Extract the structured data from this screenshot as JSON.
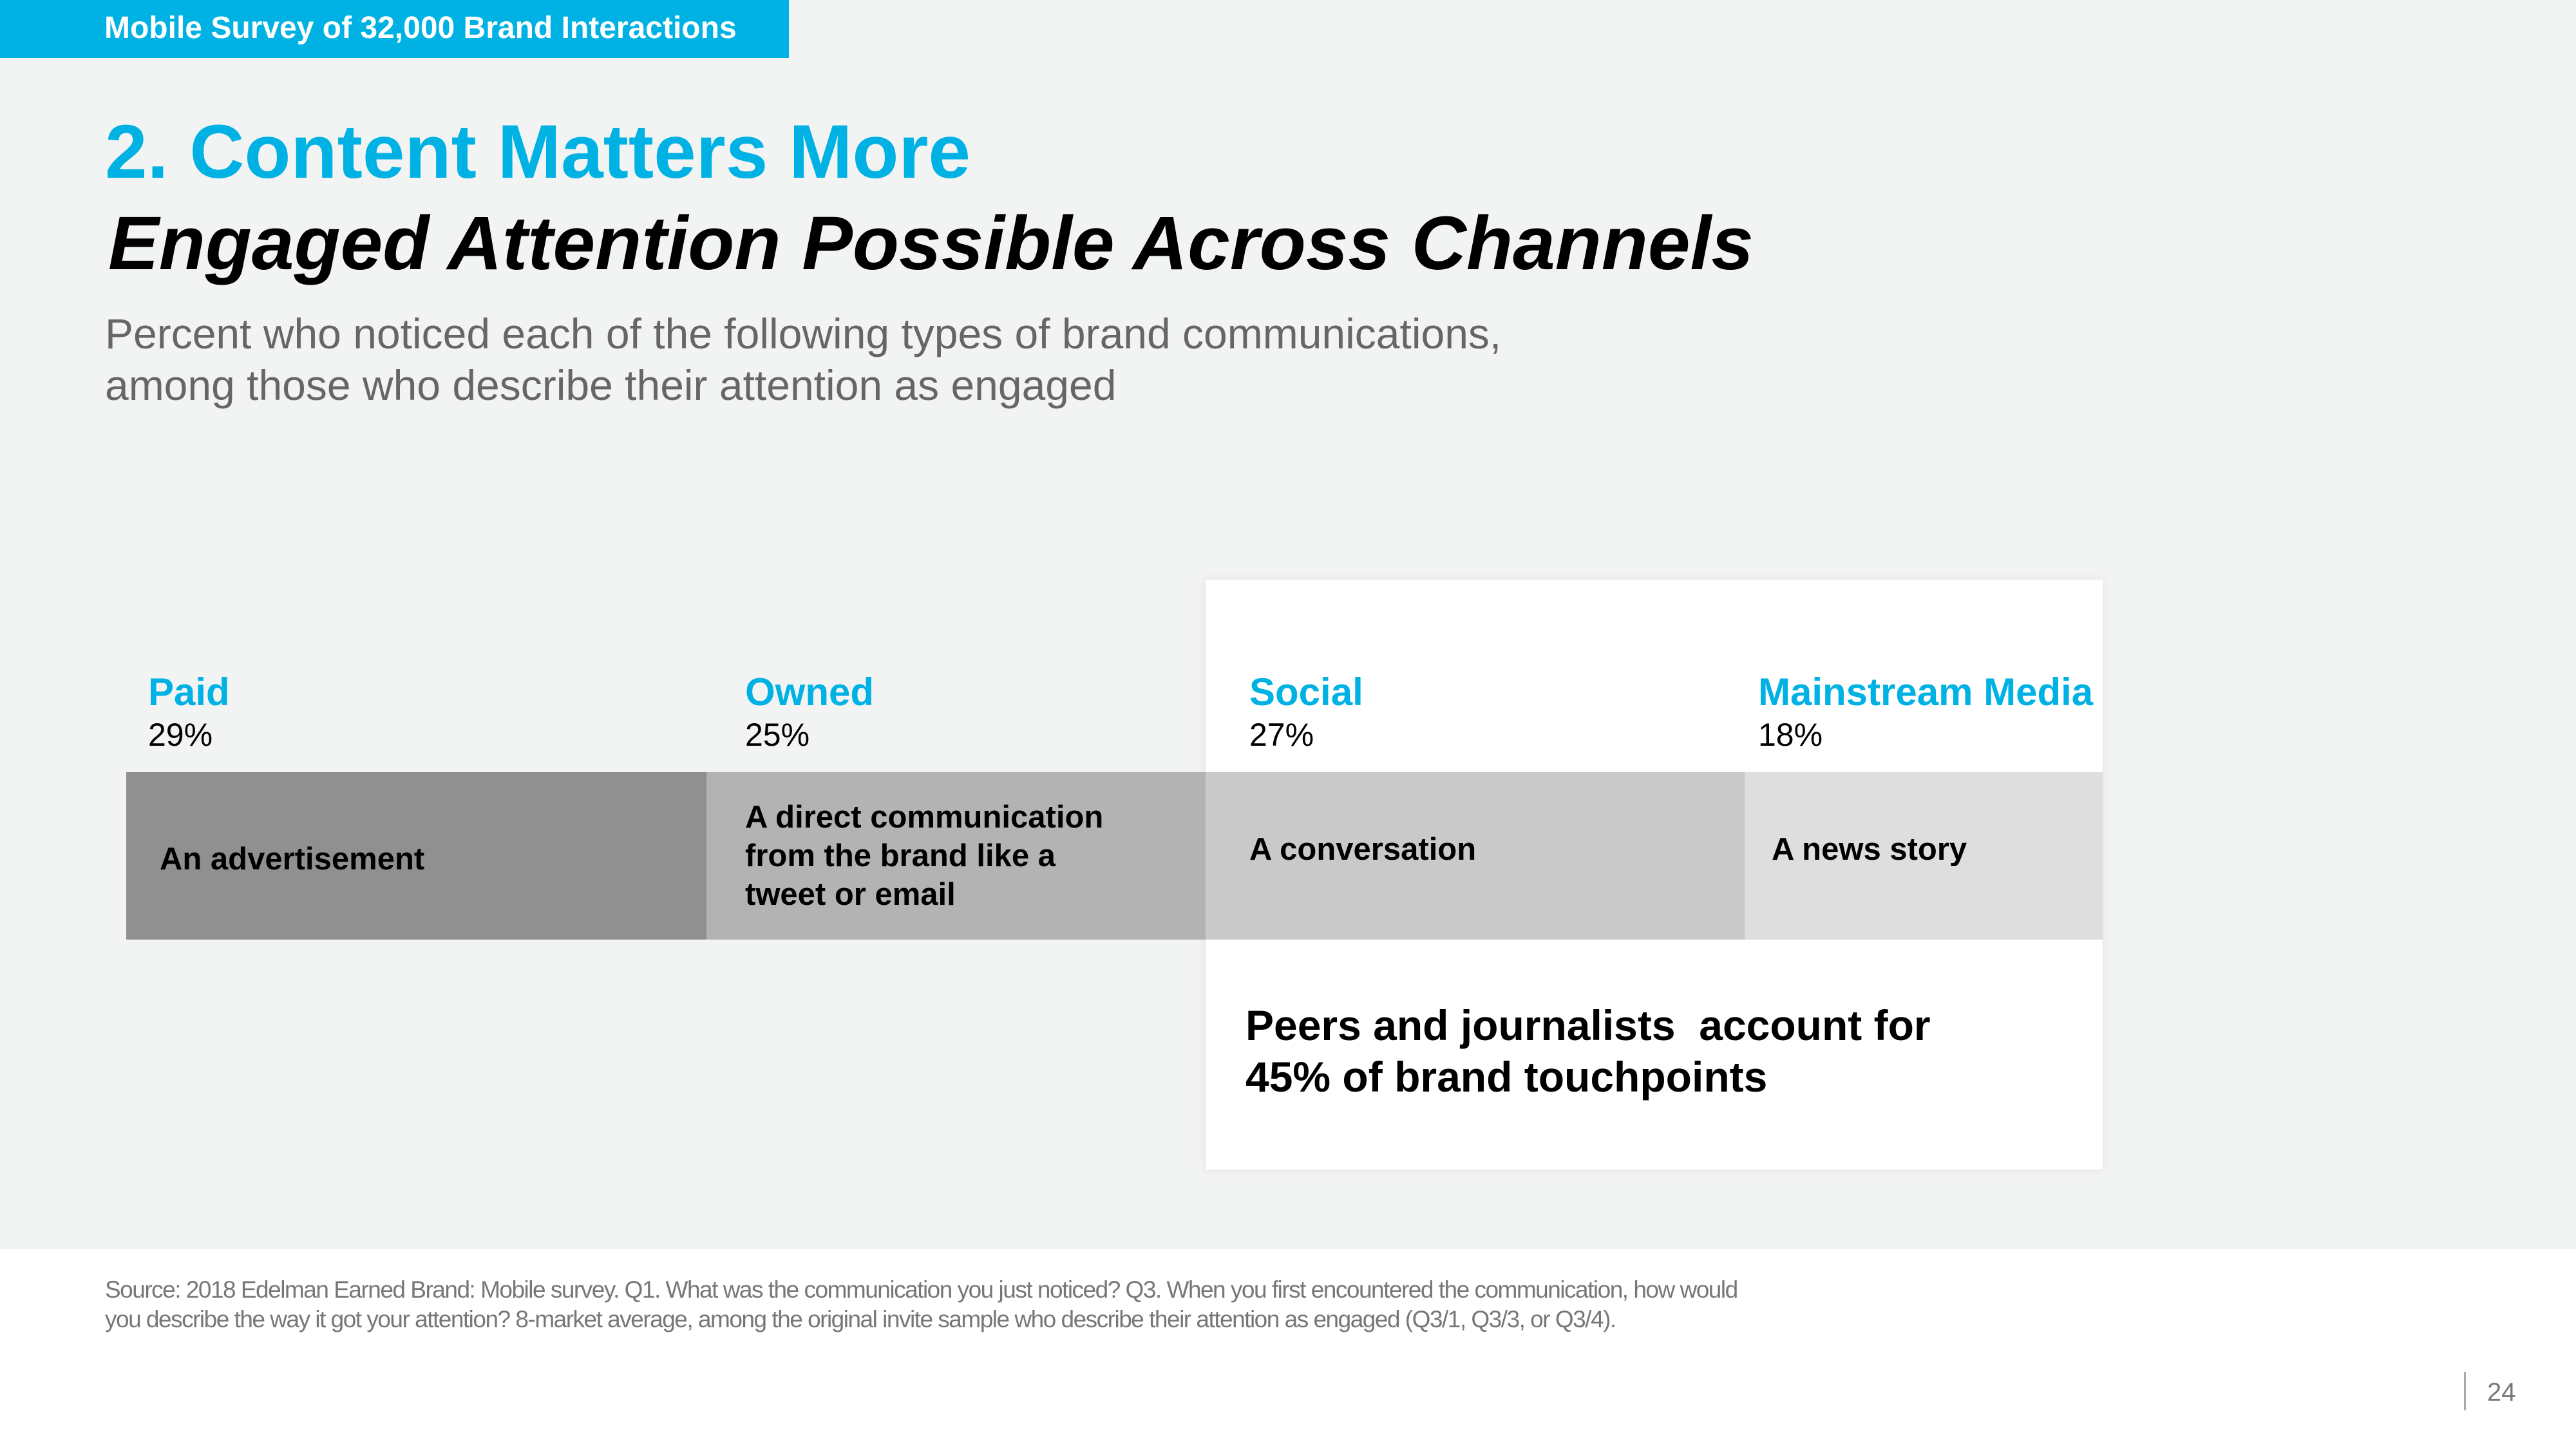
{
  "banner": "Mobile Survey of 32,000 Brand Interactions",
  "title": "2. Content Matters More",
  "subtitle": "Engaged Attention Possible Across Channels",
  "description_line1": "Percent who noticed each of the following types of brand communications,",
  "description_line2": "among those who describe their attention as engaged",
  "channels": [
    {
      "name": "Paid",
      "percent": "29%",
      "description": "An advertisement",
      "color": "#909090"
    },
    {
      "name": "Owned",
      "percent": "25%",
      "description": "A direct communication from the brand like a tweet or email",
      "color": "#b3b3b3"
    },
    {
      "name": "Social",
      "percent": "27%",
      "description": "A conversation",
      "color": "#c9c9c9"
    },
    {
      "name": "Mainstream Media",
      "percent": "18%",
      "description": "A news story",
      "color": "#dedede"
    }
  ],
  "callout_line1": "Peers and journalists  account for",
  "callout_line2": "45% of brand touchpoints",
  "source_line1": "Source: 2018 Edelman Earned Brand: Mobile survey. Q1. What was the communication you just noticed? Q3. When you first encountered the communication, how would",
  "source_line2": "you describe the way it got your attention? 8-market average, among the original invite sample who describe their attention as engaged (Q3/1, Q3/3, or Q3/4).",
  "page_number": "24"
}
